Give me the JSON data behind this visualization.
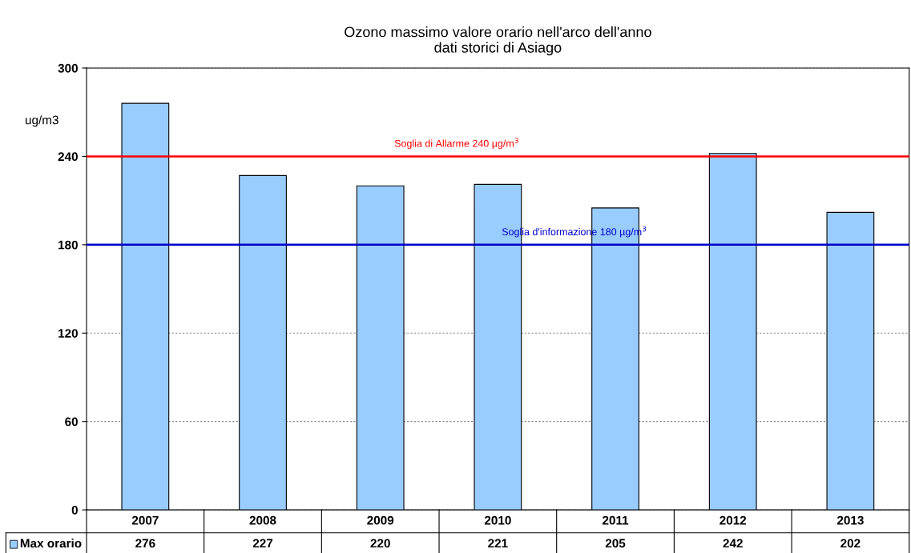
{
  "chart_data": {
    "type": "bar",
    "title": "Ozono massimo valore orario nell'arco dell'anno\ndati storici di Asiago",
    "ylabel": "ug/m3",
    "categories": [
      "2007",
      "2008",
      "2009",
      "2010",
      "2011",
      "2012",
      "2013"
    ],
    "series": [
      {
        "name": "Max orario",
        "color": "#99ccff",
        "values": [
          276,
          227,
          220,
          221,
          205,
          242,
          202
        ]
      }
    ],
    "ylim": [
      0,
      300
    ],
    "yticks": [
      0,
      60,
      120,
      180,
      240,
      300
    ],
    "grid": "y",
    "data_labels": true,
    "ref_lines": [
      {
        "axis": "y",
        "value": 240,
        "label": "Soglia di Allarme 240 µg/m$^{3}$",
        "color": "#ff0000"
      },
      {
        "axis": "y",
        "value": 180,
        "label": "Soglia d'informazione 180 µg/m$^{3}$",
        "color": "#0000cc"
      }
    ]
  }
}
